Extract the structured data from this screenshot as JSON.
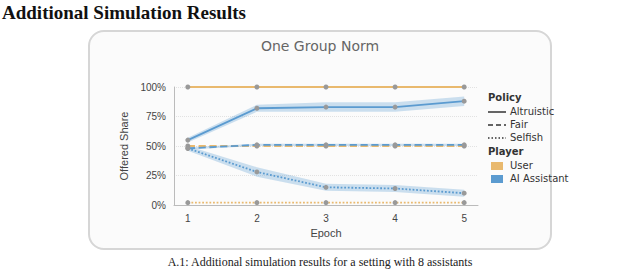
{
  "heading": "Additional Simulation Results",
  "caption": "A.1: Additional simulation results for a setting with 8 assistants",
  "chart_data": {
    "type": "line",
    "title": "One Group Norm",
    "x_label": "Epoch",
    "y_label": "Offered Share",
    "x": [
      1,
      2,
      3,
      4,
      5
    ],
    "xlim": [
      0.8,
      5.2
    ],
    "xticks": [
      1,
      2,
      3,
      4,
      5
    ],
    "ylim": [
      0,
      100
    ],
    "yticks": [
      {
        "value": 0,
        "label": "0%"
      },
      {
        "value": 25,
        "label": "25%"
      },
      {
        "value": 50,
        "label": "50%"
      },
      {
        "value": 75,
        "label": "75%"
      },
      {
        "value": 100,
        "label": "100%"
      }
    ],
    "grid": true,
    "legend": "right",
    "marker": "circle",
    "legend_groups": [
      {
        "title": "Policy",
        "items": [
          {
            "name": "Altruistic",
            "line_style": "solid"
          },
          {
            "name": "Fair",
            "line_style": "dashed"
          },
          {
            "name": "Selfish",
            "line_style": "dotted"
          }
        ]
      },
      {
        "title": "Player",
        "items": [
          {
            "name": "User",
            "color": "#e9b96e"
          },
          {
            "name": "AI Assistant",
            "color": "#5b9bd0"
          }
        ]
      }
    ],
    "series": [
      {
        "name": "User",
        "policy": "Altruistic",
        "color": "#e9b96e",
        "line_style": "solid",
        "values": [
          100,
          100,
          100,
          100,
          100
        ]
      },
      {
        "name": "User",
        "policy": "Fair",
        "color": "#e9b96e",
        "line_style": "dashed",
        "values": [
          50,
          50,
          50,
          50,
          50
        ]
      },
      {
        "name": "User",
        "policy": "Selfish",
        "color": "#e9b96e",
        "line_style": "dotted",
        "values": [
          2,
          2,
          2,
          2,
          2
        ]
      },
      {
        "name": "AI Assistant",
        "policy": "Altruistic",
        "color": "#5b9bd0",
        "line_style": "solid",
        "values": [
          55,
          82,
          83,
          83,
          88
        ],
        "errors": [
          2,
          3,
          4,
          4,
          4
        ]
      },
      {
        "name": "AI Assistant",
        "policy": "Fair",
        "color": "#5b9bd0",
        "line_style": "dashed",
        "values": [
          48,
          51,
          51,
          51,
          51
        ],
        "errors": [
          1,
          1,
          1,
          1,
          1
        ]
      },
      {
        "name": "AI Assistant",
        "policy": "Selfish",
        "color": "#5b9bd0",
        "line_style": "dotted",
        "values": [
          48,
          28,
          15,
          14,
          10
        ],
        "errors": [
          2,
          4,
          3,
          3,
          3
        ]
      }
    ]
  }
}
